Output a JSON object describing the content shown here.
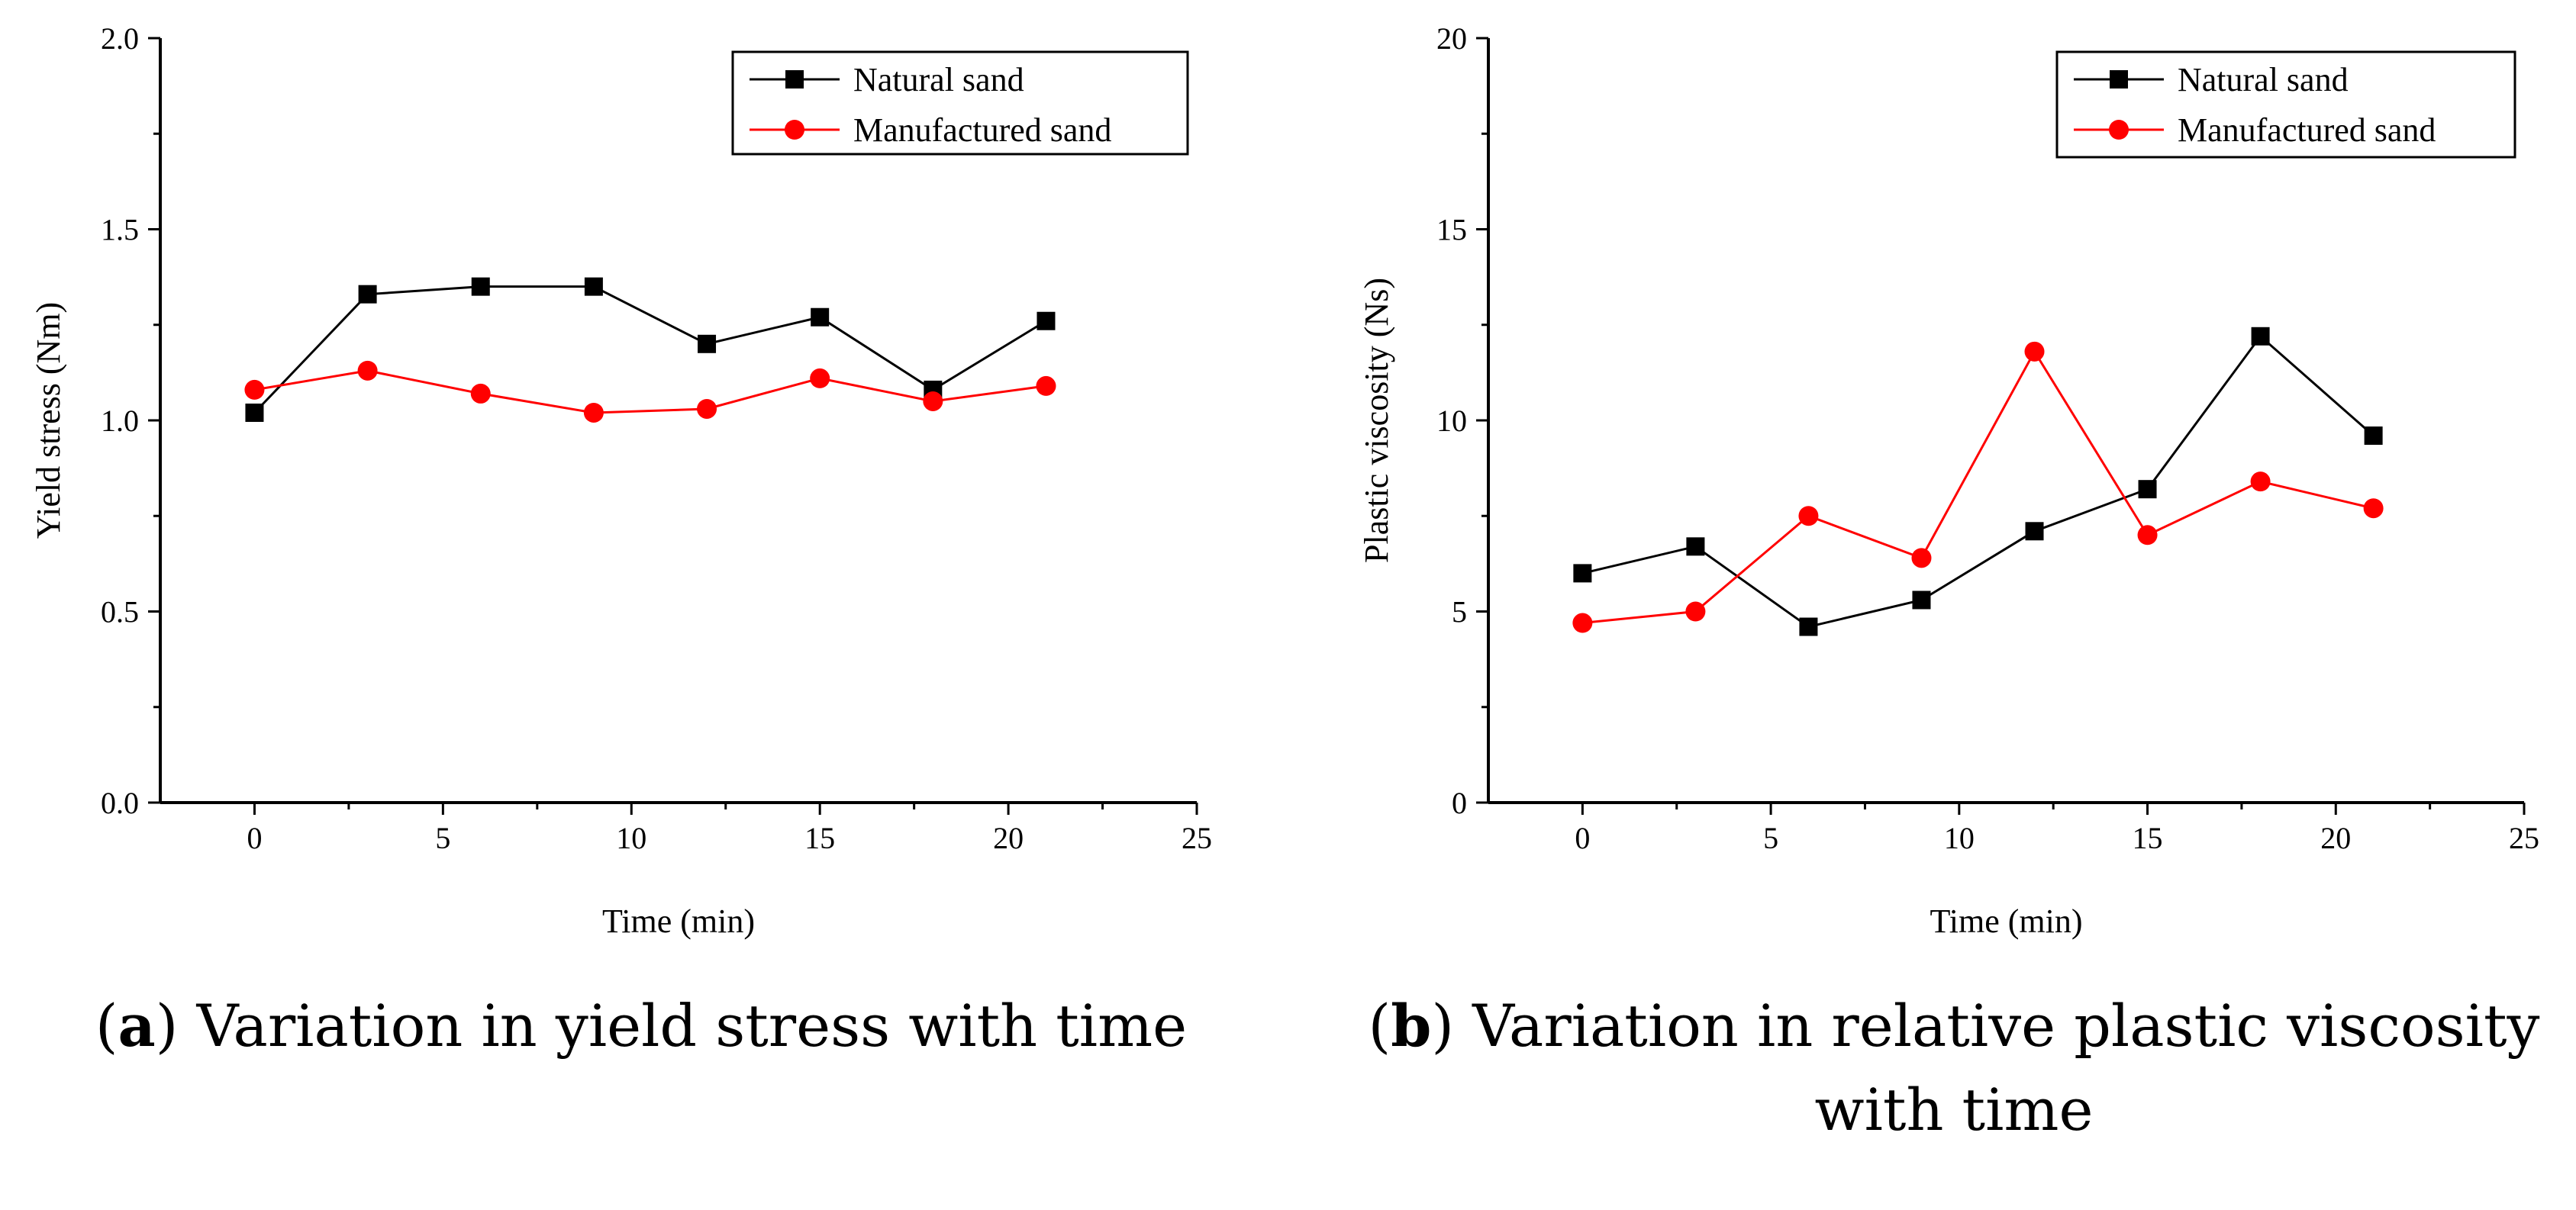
{
  "chart_data": [
    {
      "type": "line",
      "xlabel": "Time (min)",
      "ylabel": "Yield stress (Nm)",
      "xlim": [
        -2.5,
        25
      ],
      "ylim": [
        0,
        2.0
      ],
      "xticks": [
        0,
        5,
        10,
        15,
        20,
        25
      ],
      "yticks": [
        0.0,
        0.5,
        1.0,
        1.5,
        2.0
      ],
      "ytick_labels": [
        "0.0",
        "0.5",
        "1.0",
        "1.5",
        "2.0"
      ],
      "grid": false,
      "legend_position": "top-right",
      "x": [
        0,
        3,
        6,
        9,
        12,
        15,
        18,
        21
      ],
      "series": [
        {
          "name": "Natural sand",
          "color": "#000000",
          "marker": "square",
          "values": [
            1.02,
            1.33,
            1.35,
            1.35,
            1.2,
            1.27,
            1.08,
            1.26
          ]
        },
        {
          "name": "Manufactured sand",
          "color": "#ff0000",
          "marker": "circle",
          "values": [
            1.08,
            1.13,
            1.07,
            1.02,
            1.03,
            1.11,
            1.05,
            1.09
          ]
        }
      ],
      "caption_letter": "a",
      "caption_text": "Variation in yield stress with time"
    },
    {
      "type": "line",
      "xlabel": "Time (min)",
      "ylabel": "Plastic viscosity (Ns)",
      "xlim": [
        -2.5,
        25
      ],
      "ylim": [
        0,
        20
      ],
      "xticks": [
        0,
        5,
        10,
        15,
        20,
        25
      ],
      "yticks": [
        0,
        5,
        10,
        15,
        20
      ],
      "ytick_labels": [
        "0",
        "5",
        "10",
        "15",
        "20"
      ],
      "grid": false,
      "legend_position": "top-right",
      "x": [
        0,
        3,
        6,
        9,
        12,
        15,
        18,
        21
      ],
      "series": [
        {
          "name": "Natural sand",
          "color": "#000000",
          "marker": "square",
          "values": [
            6.0,
            6.7,
            4.6,
            5.3,
            7.1,
            8.2,
            12.2,
            9.6
          ]
        },
        {
          "name": "Manufactured sand",
          "color": "#ff0000",
          "marker": "circle",
          "values": [
            4.7,
            5.0,
            7.5,
            6.4,
            11.8,
            7.0,
            8.4,
            7.7
          ]
        }
      ],
      "caption_letter": "b",
      "caption_text": "Variation in relative plastic viscosity with time"
    }
  ]
}
